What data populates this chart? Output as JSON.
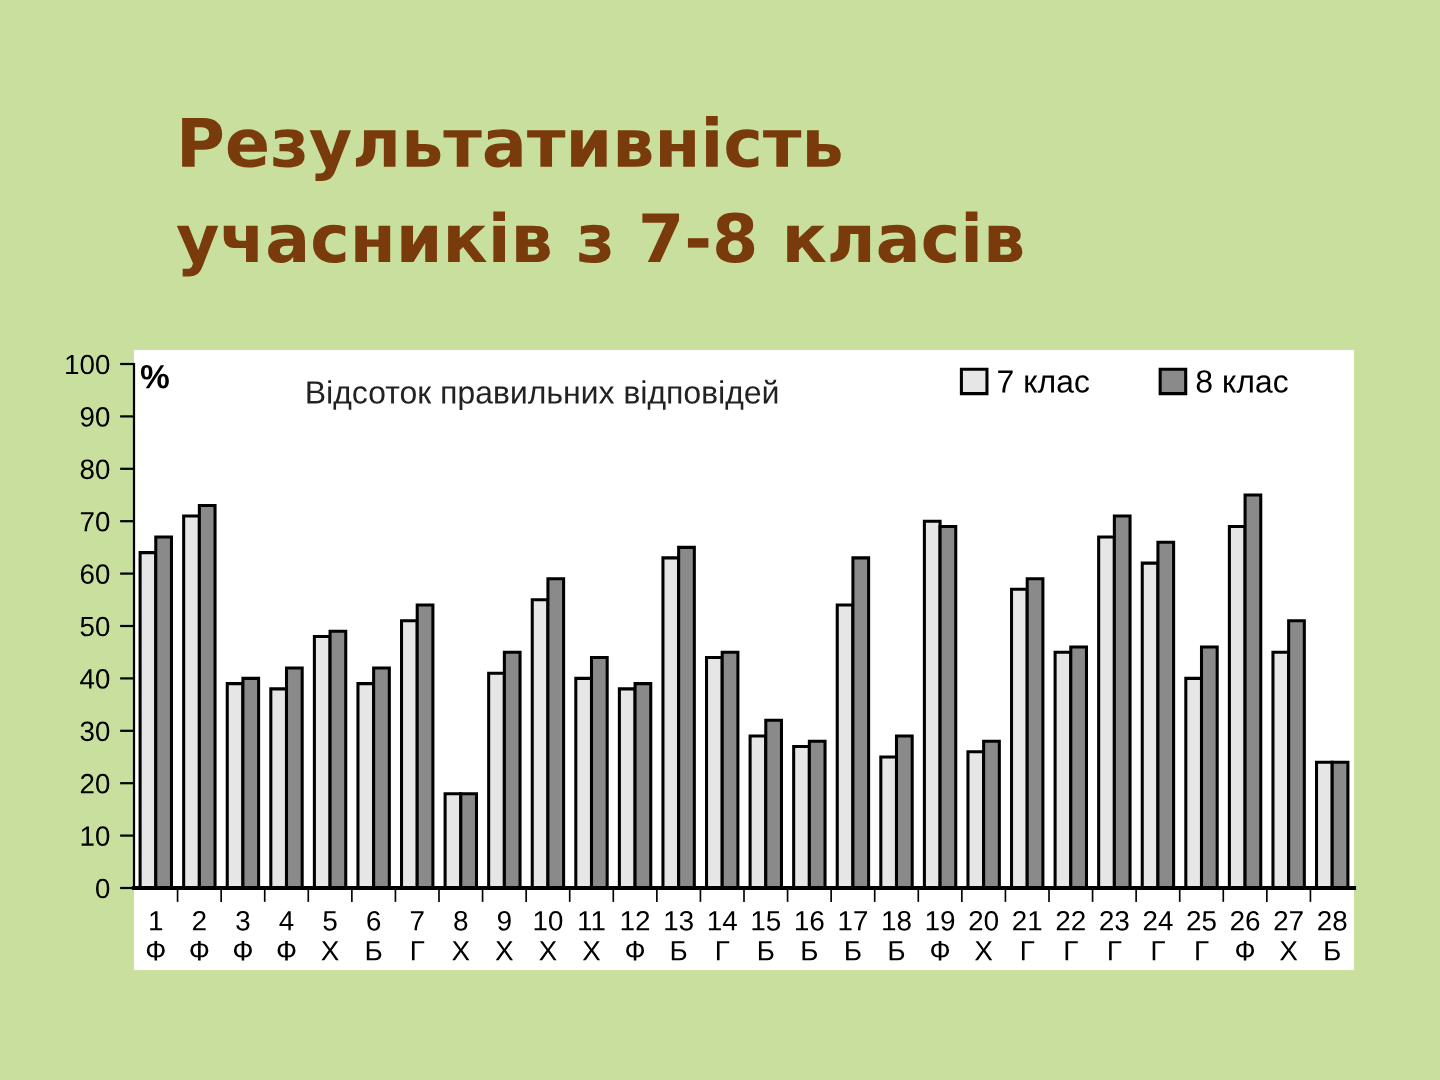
{
  "chart_data": {
    "type": "bar",
    "title": "Результативність\nучасників з 7-8 класів",
    "subtitle": "Відсоток правильних відповідей",
    "ylabel": "%",
    "categories": [
      "1\nФ",
      "2\nФ",
      "3\nФ",
      "4\nФ",
      "5\nХ",
      "6\nБ",
      "7\nГ",
      "8\nХ",
      "9\nХ",
      "10\nХ",
      "11\nХ",
      "12\nФ",
      "13\nБ",
      "14\nГ",
      "15\nБ",
      "16\nБ",
      "17\nБ",
      "18\nБ",
      "19\nФ",
      "20\nХ",
      "21\nГ",
      "22\nГ",
      "23\nГ",
      "24\nГ",
      "25\nГ",
      "26\nФ",
      "27\nХ",
      "28\nБ"
    ],
    "series": [
      {
        "name": "7 клас",
        "color": "#e6e6e6",
        "values": [
          64,
          71,
          39,
          38,
          48,
          39,
          51,
          18,
          41,
          55,
          40,
          38,
          63,
          44,
          29,
          27,
          54,
          25,
          70,
          26,
          57,
          45,
          67,
          62,
          40,
          69,
          45,
          24
        ]
      },
      {
        "name": "8 клас",
        "color": "#8a8a8a",
        "values": [
          67,
          73,
          40,
          42,
          49,
          42,
          54,
          18,
          45,
          59,
          44,
          39,
          65,
          45,
          32,
          28,
          63,
          29,
          69,
          28,
          59,
          46,
          71,
          66,
          46,
          75,
          51,
          24
        ]
      }
    ],
    "ylim": [
      0,
      100
    ],
    "yticks": [
      0,
      10,
      20,
      30,
      40,
      50,
      60,
      70,
      80,
      90,
      100
    ],
    "legend": "top right"
  }
}
